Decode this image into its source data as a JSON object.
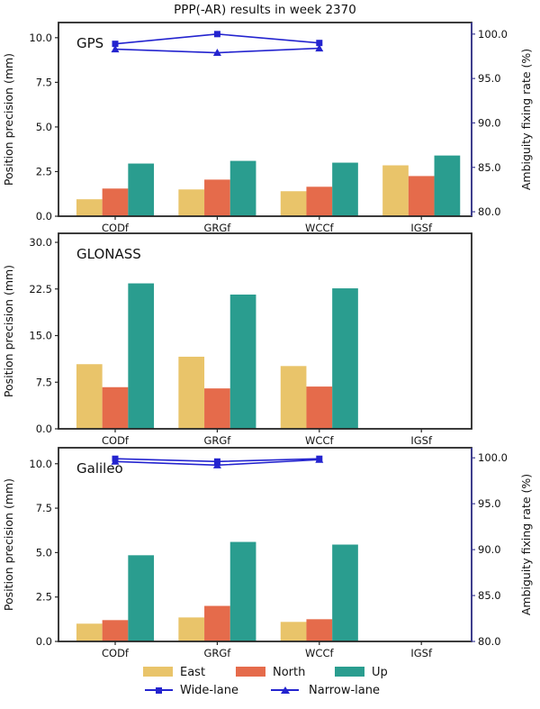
{
  "title": "PPP(-AR) results in week 2370",
  "colors": {
    "east": "#e9c46a",
    "north": "#e56b4b",
    "up": "#2a9d8f",
    "line": "#2424cf",
    "right_axis": "#3c3c94",
    "spine": "#262626",
    "text": "#111111"
  },
  "legend": {
    "items": [
      {
        "label": "East",
        "swatch": "east"
      },
      {
        "label": "North",
        "swatch": "north"
      },
      {
        "label": "Up",
        "swatch": "up"
      },
      {
        "label": "Wide-lane",
        "marker": "square"
      },
      {
        "label": "Narrow-lane",
        "marker": "triangle"
      }
    ]
  },
  "chart_data": [
    {
      "type": "bar",
      "name": "GPS",
      "categories": [
        "CODf",
        "GRGf",
        "WCCf",
        "IGSf"
      ],
      "ylabel_left": "Position precision (mm)",
      "ylabel_right": "Ambiguity fixing rate (%)",
      "yticks_left": [
        0.0,
        2.5,
        5.0,
        7.5,
        10.0
      ],
      "ylim_left": [
        0,
        10.85
      ],
      "yticks_right": [
        80.0,
        85.0,
        90.0,
        95.0,
        100.0
      ],
      "ylim_right": [
        79.5,
        101.3
      ],
      "series": [
        {
          "name": "East",
          "kind": "bar",
          "color": "east",
          "values": [
            0.95,
            1.5,
            1.4,
            2.85
          ]
        },
        {
          "name": "North",
          "kind": "bar",
          "color": "north",
          "values": [
            1.55,
            2.05,
            1.65,
            2.25
          ]
        },
        {
          "name": "Up",
          "kind": "bar",
          "color": "up",
          "values": [
            2.95,
            3.1,
            3.0,
            3.4
          ]
        },
        {
          "name": "Wide-lane",
          "kind": "line",
          "marker": "square",
          "values": [
            98.9,
            100.0,
            99.0,
            null
          ]
        },
        {
          "name": "Narrow-lane",
          "kind": "line",
          "marker": "triangle",
          "values": [
            98.3,
            97.9,
            98.4,
            null
          ]
        }
      ]
    },
    {
      "type": "bar",
      "name": "GLONASS",
      "categories": [
        "CODf",
        "GRGf",
        "WCCf",
        "IGSf"
      ],
      "ylabel_left": "Position precision (mm)",
      "yticks_left": [
        0.0,
        7.5,
        15.0,
        22.5,
        30.0
      ],
      "ylim_left": [
        0,
        31.45
      ],
      "series": [
        {
          "name": "East",
          "kind": "bar",
          "color": "east",
          "values": [
            10.4,
            11.6,
            10.1,
            null
          ]
        },
        {
          "name": "North",
          "kind": "bar",
          "color": "north",
          "values": [
            6.7,
            6.5,
            6.8,
            null
          ]
        },
        {
          "name": "Up",
          "kind": "bar",
          "color": "up",
          "values": [
            23.4,
            21.6,
            22.6,
            null
          ]
        }
      ]
    },
    {
      "type": "bar",
      "name": "Galileo",
      "categories": [
        "CODf",
        "GRGf",
        "WCCf",
        "IGSf"
      ],
      "ylabel_left": "Position precision (mm)",
      "ylabel_right": "Ambiguity fixing rate (%)",
      "yticks_left": [
        0.0,
        2.5,
        5.0,
        7.5,
        10.0
      ],
      "ylim_left": [
        0,
        10.9
      ],
      "yticks_right": [
        80.0,
        85.0,
        90.0,
        95.0,
        100.0
      ],
      "ylim_right": [
        80,
        101.1
      ],
      "series": [
        {
          "name": "East",
          "kind": "bar",
          "color": "east",
          "values": [
            1.0,
            1.35,
            1.1,
            null
          ]
        },
        {
          "name": "North",
          "kind": "bar",
          "color": "north",
          "values": [
            1.2,
            2.0,
            1.25,
            null
          ]
        },
        {
          "name": "Up",
          "kind": "bar",
          "color": "up",
          "values": [
            4.85,
            5.6,
            5.45,
            null
          ]
        },
        {
          "name": "Wide-lane",
          "kind": "line",
          "marker": "square",
          "values": [
            99.9,
            99.6,
            99.9,
            null
          ]
        },
        {
          "name": "Narrow-lane",
          "kind": "line",
          "marker": "triangle",
          "values": [
            99.6,
            99.2,
            99.8,
            null
          ]
        }
      ]
    }
  ]
}
